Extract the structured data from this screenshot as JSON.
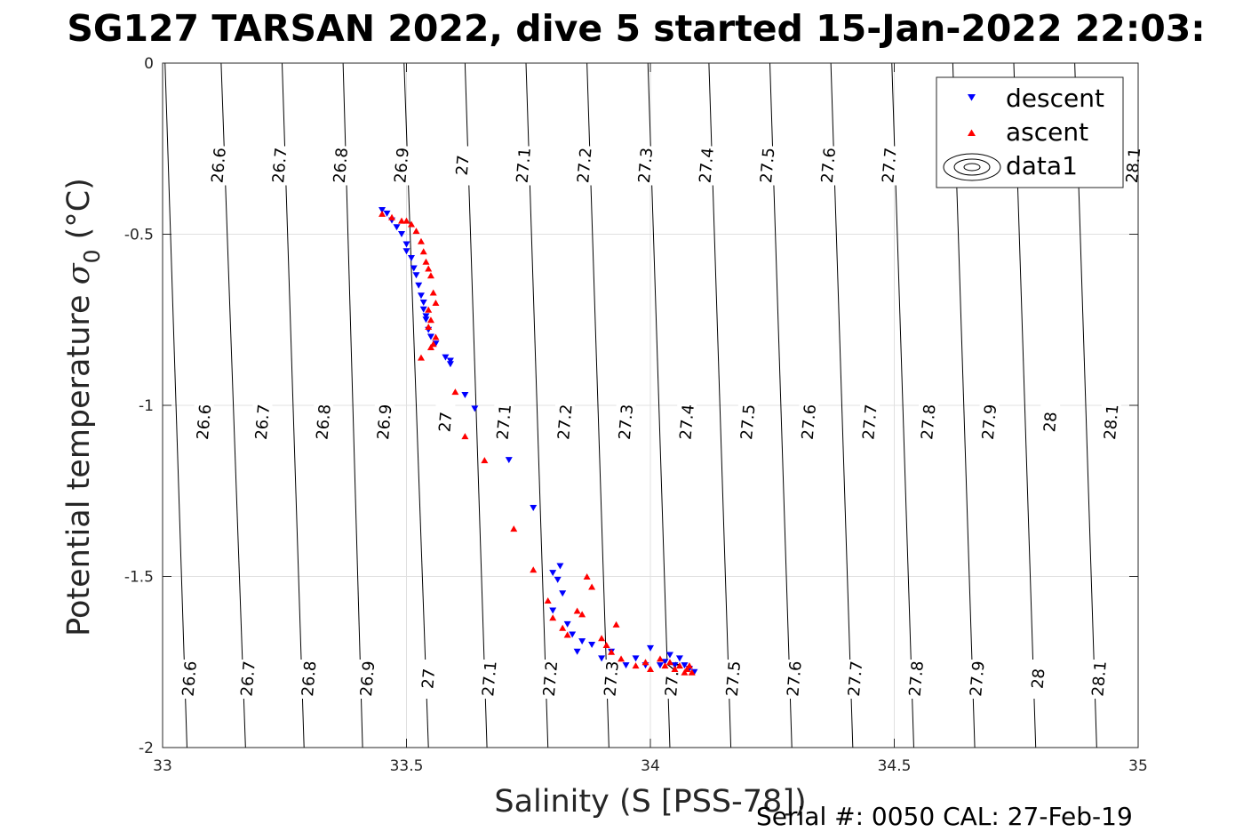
{
  "chart_data": {
    "type": "scatter",
    "title": "SG127 TARSAN 2022, dive 5 started 15-Jan-2022 22:03:",
    "xlabel": "Salinity (S [PSS-78])",
    "ylabel_main": "Potential temperature ",
    "ylabel_sym": "σ",
    "ylabel_sub": "0",
    "ylabel_unit": " (°C)",
    "xlim": [
      33,
      35
    ],
    "ylim": [
      -2,
      0
    ],
    "xticks": [
      33,
      33.5,
      34,
      34.5,
      35
    ],
    "xtick_labels": [
      "33",
      "33.5",
      "34",
      "34.5",
      "35"
    ],
    "yticks": [
      0,
      -0.5,
      -1,
      -1.5,
      -2
    ],
    "ytick_labels": [
      "0",
      "-0.5",
      "-1",
      "-1.5",
      "-2"
    ],
    "grid": true,
    "legend_position": "top-right",
    "footer": "Serial #: 0050  CAL: 27-Feb-19",
    "colors": {
      "descent": "#0000ff",
      "ascent": "#ff0000",
      "contour": "#000000"
    },
    "contours": {
      "name": "data1",
      "levels": [
        {
          "label": "26.6",
          "s_top": 33.005,
          "s_bottom": 33.05,
          "labels": [
            [
              33.115,
              -0.3
            ],
            [
              33.085,
              -1.05
            ],
            [
              33.055,
              -1.8
            ]
          ]
        },
        {
          "label": "26.7",
          "s_top": 33.12,
          "s_bottom": 33.17,
          "labels": [
            [
              33.24,
              -0.3
            ],
            [
              33.205,
              -1.05
            ],
            [
              33.175,
              -1.8
            ]
          ]
        },
        {
          "label": "26.8",
          "s_top": 33.245,
          "s_bottom": 33.29,
          "labels": [
            [
              33.365,
              -0.3
            ],
            [
              33.33,
              -1.05
            ],
            [
              33.3,
              -1.8
            ]
          ]
        },
        {
          "label": "26.9",
          "s_top": 33.37,
          "s_bottom": 33.41,
          "labels": [
            [
              33.49,
              -0.3
            ],
            [
              33.455,
              -1.05
            ],
            [
              33.42,
              -1.8
            ]
          ]
        },
        {
          "label": "27",
          "s_top": 33.495,
          "s_bottom": 33.545,
          "labels": [
            [
              33.615,
              -0.3
            ],
            [
              33.58,
              -1.05
            ],
            [
              33.545,
              -1.8
            ]
          ]
        },
        {
          "label": "27.1",
          "s_top": 33.62,
          "s_bottom": 33.665,
          "labels": [
            [
              33.74,
              -0.3
            ],
            [
              33.7,
              -1.05
            ],
            [
              33.67,
              -1.8
            ]
          ]
        },
        {
          "label": "27.2",
          "s_top": 33.745,
          "s_bottom": 33.79,
          "labels": [
            [
              33.865,
              -0.3
            ],
            [
              33.825,
              -1.05
            ],
            [
              33.795,
              -1.8
            ]
          ]
        },
        {
          "label": "27.3",
          "s_top": 33.87,
          "s_bottom": 33.915,
          "labels": [
            [
              33.99,
              -0.3
            ],
            [
              33.95,
              -1.05
            ],
            [
              33.92,
              -1.8
            ]
          ]
        },
        {
          "label": "27.4",
          "s_top": 33.995,
          "s_bottom": 34.04,
          "labels": [
            [
              34.115,
              -0.3
            ],
            [
              34.075,
              -1.05
            ],
            [
              34.045,
              -1.8
            ]
          ]
        },
        {
          "label": "27.5",
          "s_top": 34.12,
          "s_bottom": 34.165,
          "labels": [
            [
              34.24,
              -0.3
            ],
            [
              34.2,
              -1.05
            ],
            [
              34.17,
              -1.8
            ]
          ]
        },
        {
          "label": "27.6",
          "s_top": 34.245,
          "s_bottom": 34.29,
          "labels": [
            [
              34.365,
              -0.3
            ],
            [
              34.325,
              -1.05
            ],
            [
              34.295,
              -1.8
            ]
          ]
        },
        {
          "label": "27.7",
          "s_top": 34.37,
          "s_bottom": 34.415,
          "labels": [
            [
              34.49,
              -0.3
            ],
            [
              34.45,
              -1.05
            ],
            [
              34.42,
              -1.8
            ]
          ]
        },
        {
          "label": "27.8",
          "s_top": 34.495,
          "s_bottom": 34.54,
          "labels": [
            [
              34.57,
              -1.05
            ],
            [
              34.545,
              -1.8
            ]
          ]
        },
        {
          "label": "27.9",
          "s_top": 34.62,
          "s_bottom": 34.665,
          "labels": [
            [
              34.695,
              -1.05
            ],
            [
              34.67,
              -1.8
            ]
          ]
        },
        {
          "label": "28",
          "s_top": 34.745,
          "s_bottom": 34.79,
          "labels": [
            [
              34.82,
              -1.05
            ],
            [
              34.795,
              -1.8
            ]
          ]
        },
        {
          "label": "28.1",
          "s_top": 34.87,
          "s_bottom": 34.915,
          "labels": [
            [
              34.99,
              -0.3
            ],
            [
              34.945,
              -1.05
            ],
            [
              34.92,
              -1.8
            ]
          ]
        }
      ]
    },
    "series": [
      {
        "name": "descent",
        "marker": "triangle-down",
        "x": [
          33.45,
          33.46,
          33.47,
          33.48,
          33.49,
          33.5,
          33.5,
          33.51,
          33.515,
          33.52,
          33.525,
          33.53,
          33.535,
          33.535,
          33.54,
          33.54,
          33.545,
          33.55,
          33.56,
          33.58,
          33.59,
          33.59,
          33.62,
          33.64,
          33.71,
          33.76,
          33.8,
          33.81,
          33.815,
          33.82,
          33.8,
          33.83,
          33.84,
          33.86,
          33.85,
          33.88,
          33.9,
          33.92,
          33.95,
          33.97,
          33.99,
          34.0,
          34.02,
          34.03,
          34.04,
          34.05,
          34.06,
          34.07,
          34.08,
          34.09
        ],
        "y": [
          -0.43,
          -0.44,
          -0.46,
          -0.48,
          -0.5,
          -0.53,
          -0.55,
          -0.57,
          -0.6,
          -0.62,
          -0.65,
          -0.68,
          -0.7,
          -0.72,
          -0.74,
          -0.75,
          -0.78,
          -0.8,
          -0.82,
          -0.86,
          -0.88,
          -0.87,
          -0.97,
          -1.01,
          -1.16,
          -1.3,
          -1.49,
          -1.51,
          -1.47,
          -1.55,
          -1.6,
          -1.64,
          -1.67,
          -1.69,
          -1.72,
          -1.7,
          -1.74,
          -1.72,
          -1.76,
          -1.74,
          -1.76,
          -1.71,
          -1.76,
          -1.75,
          -1.73,
          -1.76,
          -1.74,
          -1.76,
          -1.77,
          -1.78
        ]
      },
      {
        "name": "ascent",
        "marker": "triangle-up",
        "x": [
          33.45,
          33.47,
          33.49,
          33.5,
          33.51,
          33.52,
          33.53,
          33.535,
          33.54,
          33.545,
          33.55,
          33.555,
          33.56,
          33.545,
          33.55,
          33.545,
          33.56,
          33.555,
          33.53,
          33.55,
          33.6,
          33.62,
          33.66,
          33.72,
          33.76,
          33.79,
          33.8,
          33.82,
          33.83,
          33.85,
          33.86,
          33.87,
          33.88,
          33.9,
          33.91,
          33.92,
          33.93,
          33.94,
          33.97,
          33.99,
          34.0,
          34.02,
          34.03,
          34.04,
          34.05,
          34.06,
          34.07,
          34.075,
          34.08,
          34.085
        ],
        "y": [
          -0.44,
          -0.45,
          -0.46,
          -0.46,
          -0.47,
          -0.49,
          -0.52,
          -0.55,
          -0.58,
          -0.6,
          -0.62,
          -0.67,
          -0.7,
          -0.72,
          -0.75,
          -0.77,
          -0.8,
          -0.82,
          -0.86,
          -0.83,
          -0.96,
          -1.09,
          -1.16,
          -1.36,
          -1.48,
          -1.57,
          -1.62,
          -1.65,
          -1.67,
          -1.6,
          -1.61,
          -1.5,
          -1.53,
          -1.68,
          -1.7,
          -1.72,
          -1.64,
          -1.74,
          -1.76,
          -1.75,
          -1.77,
          -1.74,
          -1.76,
          -1.75,
          -1.77,
          -1.76,
          -1.78,
          -1.77,
          -1.76,
          -1.78
        ]
      }
    ]
  }
}
